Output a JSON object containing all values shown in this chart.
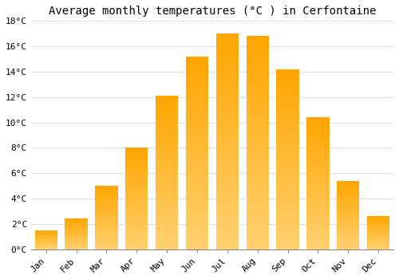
{
  "title": "Average monthly temperatures (°C ) in Cerfontaine",
  "months": [
    "Jan",
    "Feb",
    "Mar",
    "Apr",
    "May",
    "Jun",
    "Jul",
    "Aug",
    "Sep",
    "Oct",
    "Nov",
    "Dec"
  ],
  "values": [
    1.5,
    2.4,
    5.0,
    8.0,
    12.1,
    15.2,
    17.0,
    16.8,
    14.2,
    10.4,
    5.4,
    2.6
  ],
  "bar_color": "#FFA500",
  "bar_color_light": "#FFD070",
  "background_color": "#FFFFFF",
  "grid_color": "#DDDDDD",
  "ylim": [
    0,
    18
  ],
  "yticks": [
    0,
    2,
    4,
    6,
    8,
    10,
    12,
    14,
    16,
    18
  ],
  "title_fontsize": 10,
  "tick_fontsize": 8,
  "bar_width": 0.75,
  "font_family": "monospace"
}
